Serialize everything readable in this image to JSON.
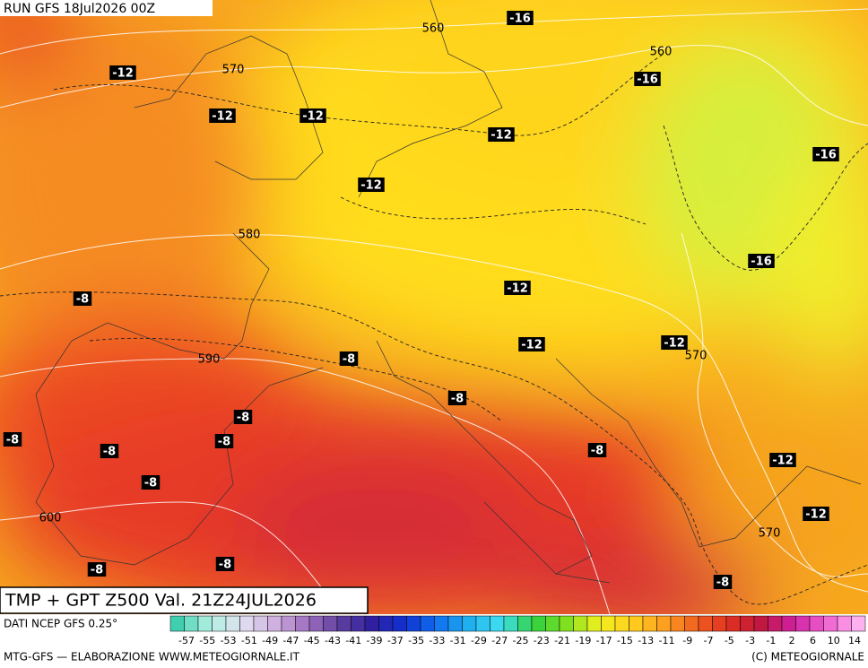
{
  "header": {
    "run": "RUN GFS 18Jul2026 00Z"
  },
  "map_labels": [
    "-16",
    "560",
    "-12",
    "570",
    "560",
    "-16",
    "-12",
    "-12",
    "-12",
    "-16",
    "-12",
    "580",
    "-16",
    "-12",
    "-8",
    "-12",
    "-12",
    "570",
    "590",
    "-8",
    "-8",
    "-8",
    "-8",
    "-8",
    "-8",
    "-8",
    "-12",
    "-8",
    "600",
    "-12",
    "570",
    "-8",
    "-8",
    "-8"
  ],
  "title": "TMP + GPT Z500 Val. 21Z24JUL2026",
  "source": "DATI NCEP GFS 0.25°",
  "scale": {
    "labels": [
      -57,
      -55,
      -53,
      -51,
      -49,
      -47,
      -45,
      -43,
      -41,
      -39,
      -37,
      -35,
      -33,
      -31,
      -29,
      -27,
      -25,
      -23,
      -21,
      -19,
      -17,
      -15,
      -13,
      -11,
      -9,
      -7,
      -5,
      -3,
      -1,
      2,
      6,
      10,
      14
    ]
  },
  "footer": {
    "credit": "MTG-GFS — ELABORAZIONE WWW.METEOGIORNALE.IT",
    "copyright": "(C) METEOGIORNALE"
  }
}
